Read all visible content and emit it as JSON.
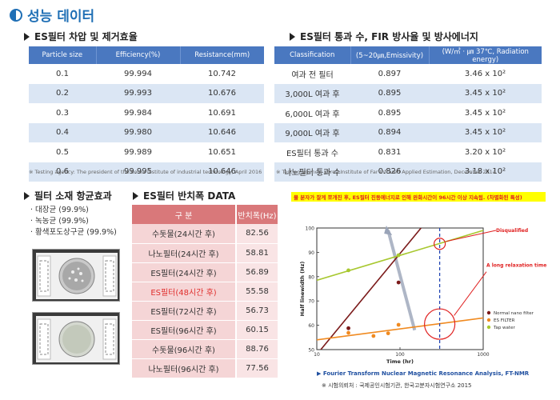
{
  "title": "성능 데이터",
  "sections": {
    "filtration": "ES필터 차압 및 제거효율",
    "emissivity": "ES필터 통과 수, FIR 방사율 및 방사에너지",
    "antibacterial": "필터 소재 항균효과",
    "half_width": "ES필터 반치폭 DATA"
  },
  "table1": {
    "headers": [
      "Particle size",
      "Efficiency(%)",
      "Resistance(mm)"
    ],
    "rows": [
      [
        "0.1",
        "99.994",
        "10.742"
      ],
      [
        "0.2",
        "99.993",
        "10.676"
      ],
      [
        "0.3",
        "99.984",
        "10.691"
      ],
      [
        "0.4",
        "99.980",
        "10.646"
      ],
      [
        "0.5",
        "99.989",
        "10.651"
      ],
      [
        "0.6",
        "99.995",
        "10.646"
      ]
    ],
    "note": "※ Testing agency: The president of the korea institute of industrial technology, April 2016"
  },
  "table2": {
    "headers": [
      "Classification",
      "(5~20㎛,Emissivity)",
      "(W/㎡ · ㎛ 37℃, Radiation energy)"
    ],
    "rows": [
      [
        "여과 전 필터",
        "0.897",
        "3.46 x 10²"
      ],
      [
        "3,000L 여과 후",
        "0.895",
        "3.45 x 10²"
      ],
      [
        "6,000L 여과 후",
        "0.895",
        "3.45 x 10²"
      ],
      [
        "9,000L 여과 후",
        "0.894",
        "3.45 x 10²"
      ],
      [
        "ES필터 통과 수",
        "0.831",
        "3.20 x 10²"
      ],
      [
        "나노필터 통과 수",
        "0.826",
        "3.18 x 10²"
      ]
    ],
    "note": "※ Testing agency: Korea Institute of Far Infrared Applied Estimation, December 2014"
  },
  "bullets": [
    "· 대장균 (99.9%)",
    "· 녹농균 (99.9%)",
    "· 황색포도상구균 (99.9%)"
  ],
  "table3": {
    "headers": [
      "구 분",
      "반치폭(Hz)"
    ],
    "rows": [
      [
        "수돗물(24시간 후)",
        "82.56"
      ],
      [
        "나노필터(24시간 후)",
        "58.81"
      ],
      [
        "ES필터(24시간 후)",
        "56.89"
      ],
      [
        "ES필터(48시간 후)",
        "55.58"
      ],
      [
        "ES필터(72시간 후)",
        "56.73"
      ],
      [
        "ES필터(96시간 후)",
        "60.15"
      ],
      [
        "수돗물(96시간 후)",
        "88.76"
      ],
      [
        "나노필터(96시간 후)",
        "77.56"
      ]
    ],
    "highlight_row": 3
  },
  "chart": {
    "banner": "물 분자가 잘게 쪼개진 후, ES필터 진동에너지로 인해 완화시간이 96시간 이상 지속됨. (차별화된 특성)",
    "annotation_disqualified": "Disqualified",
    "annotation_relaxation": "A long relaxation time",
    "caption": "▶ Fourier Transform Nuclear Magnetic Resonance Analysis, FT-NMR",
    "agency": "※ 시험의뢰처 : 국제공인시험기관, 한국고분자시험연구소 2015"
  },
  "chart_data": {
    "type": "scatter",
    "xlabel": "Time (hr)",
    "ylabel": "Half linewidth (Hz)",
    "x_scale": "log",
    "xlim": [
      10,
      1000
    ],
    "ylim": [
      50,
      100
    ],
    "x_ticks": [
      "10",
      "100",
      "1000"
    ],
    "y_ticks": [
      "50",
      "60",
      "70",
      "80",
      "90",
      "100"
    ],
    "legend_placement": "bottom-right",
    "series": [
      {
        "name": "Normal nano filter",
        "color": "#7b1a1a",
        "x": [
          24,
          96
        ],
        "y": [
          58.8,
          77.6
        ],
        "fit": [
          [
            10,
            48
          ],
          [
            200,
            102
          ]
        ]
      },
      {
        "name": "ES FILTER",
        "color": "#f08a20",
        "x": [
          24,
          48,
          72,
          96
        ],
        "y": [
          56.9,
          55.6,
          56.7,
          60.2
        ],
        "fit": [
          [
            10,
            54
          ],
          [
            1000,
            63
          ]
        ]
      },
      {
        "name": "Tap water",
        "color": "#a8c830",
        "x": [
          24,
          96
        ],
        "y": [
          82.6,
          88.8
        ],
        "fit": [
          [
            10,
            78.5
          ],
          [
            1000,
            99
          ]
        ]
      }
    ],
    "vline_x": 300
  }
}
